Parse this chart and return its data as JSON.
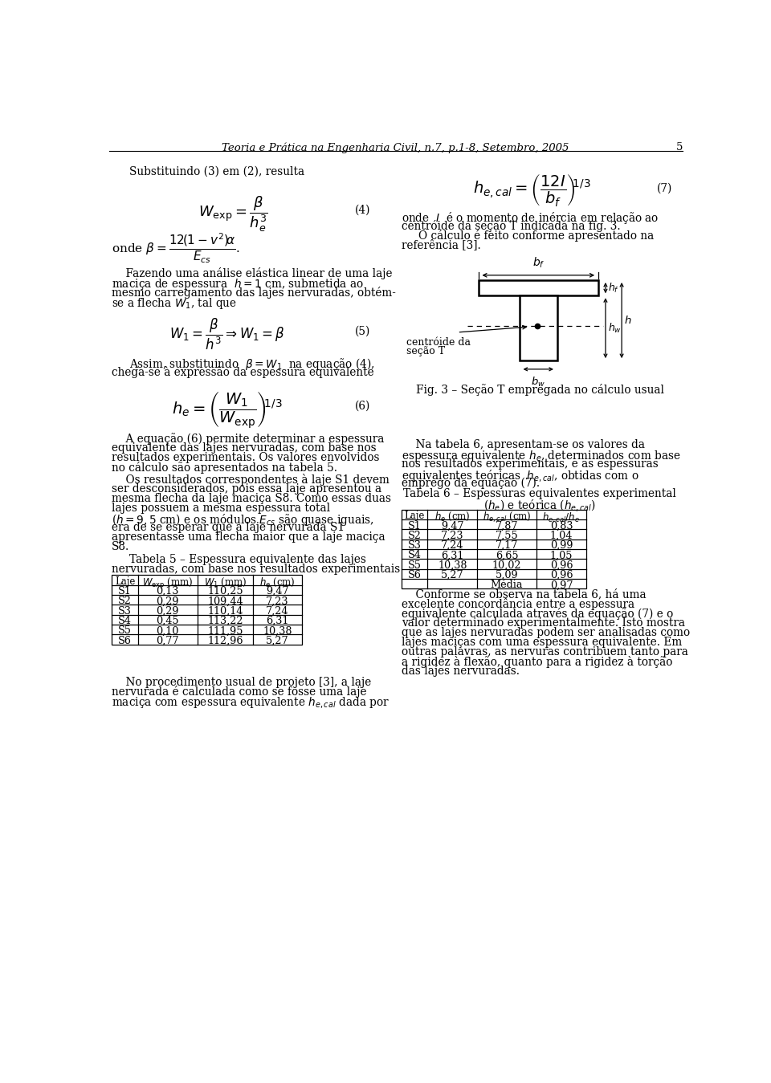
{
  "header": "Teoria e Prática na Engenharia Civil, n.7, p.1-8, Setembro, 2005",
  "page_num": "5",
  "bg_color": "#ffffff",
  "left_col": {
    "table5_data": [
      [
        "S1",
        "0,13",
        "110,25",
        "9,47"
      ],
      [
        "S2",
        "0,29",
        "109,44",
        "7,23"
      ],
      [
        "S3",
        "0,29",
        "110,14",
        "7,24"
      ],
      [
        "S4",
        "0,45",
        "113,22",
        "6,31"
      ],
      [
        "S5",
        "0,10",
        "111,95",
        "10,38"
      ],
      [
        "S6",
        "0,77",
        "112,96",
        "5,27"
      ]
    ]
  },
  "right_col": {
    "table6_data": [
      [
        "S1",
        "9,47",
        "7,87",
        "0,83"
      ],
      [
        "S2",
        "7,23",
        "7,55",
        "1,04"
      ],
      [
        "S3",
        "7,24",
        "7,17",
        "0,99"
      ],
      [
        "S4",
        "6,31",
        "6,65",
        "1,05"
      ],
      [
        "S5",
        "10,38",
        "10,02",
        "0,96"
      ],
      [
        "S6",
        "5,27",
        "5,09",
        "0,96"
      ],
      [
        "",
        "",
        "Média",
        "0,97"
      ]
    ]
  }
}
